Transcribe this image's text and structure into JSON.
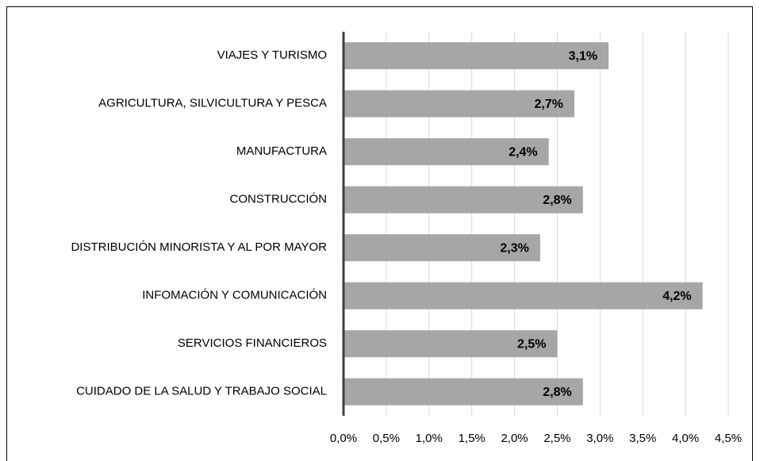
{
  "chart_data": {
    "type": "bar",
    "orientation": "horizontal",
    "categories": [
      "VIAJES Y TURISMO",
      "AGRICULTURA, SILVICULTURA Y PESCA",
      "MANUFACTURA",
      "CONSTRUCCIÓN",
      "DISTRIBUCIÓN MINORISTA Y AL POR MAYOR",
      "INFOMACIÓN Y COMUNICACIÓN",
      "SERVICIOS FINANCIEROS",
      "CUIDADO DE LA SALUD Y TRABAJO SOCIAL"
    ],
    "values": [
      3.1,
      2.7,
      2.4,
      2.8,
      2.3,
      4.2,
      2.5,
      2.8
    ],
    "value_labels": [
      "3,1%",
      "2,7%",
      "2,4%",
      "2,8%",
      "2,3%",
      "4,2%",
      "2,5%",
      "2,8%"
    ],
    "color": "#a6a6a6",
    "xlim": [
      0,
      4.5
    ],
    "xticks": [
      {
        "value": 0,
        "label": "0,0%"
      },
      {
        "value": 0.5,
        "label": "0,5%"
      },
      {
        "value": 1,
        "label": "1,0%"
      },
      {
        "value": 1.5,
        "label": "1,5%"
      },
      {
        "value": 2,
        "label": "2,0%"
      },
      {
        "value": 2.5,
        "label": "2,5%"
      },
      {
        "value": 3,
        "label": "3,0%"
      },
      {
        "value": 3.5,
        "label": "3,5%"
      },
      {
        "value": 4,
        "label": "4,0%"
      },
      {
        "value": 4.5,
        "label": "4,5%"
      }
    ],
    "grid": true
  }
}
